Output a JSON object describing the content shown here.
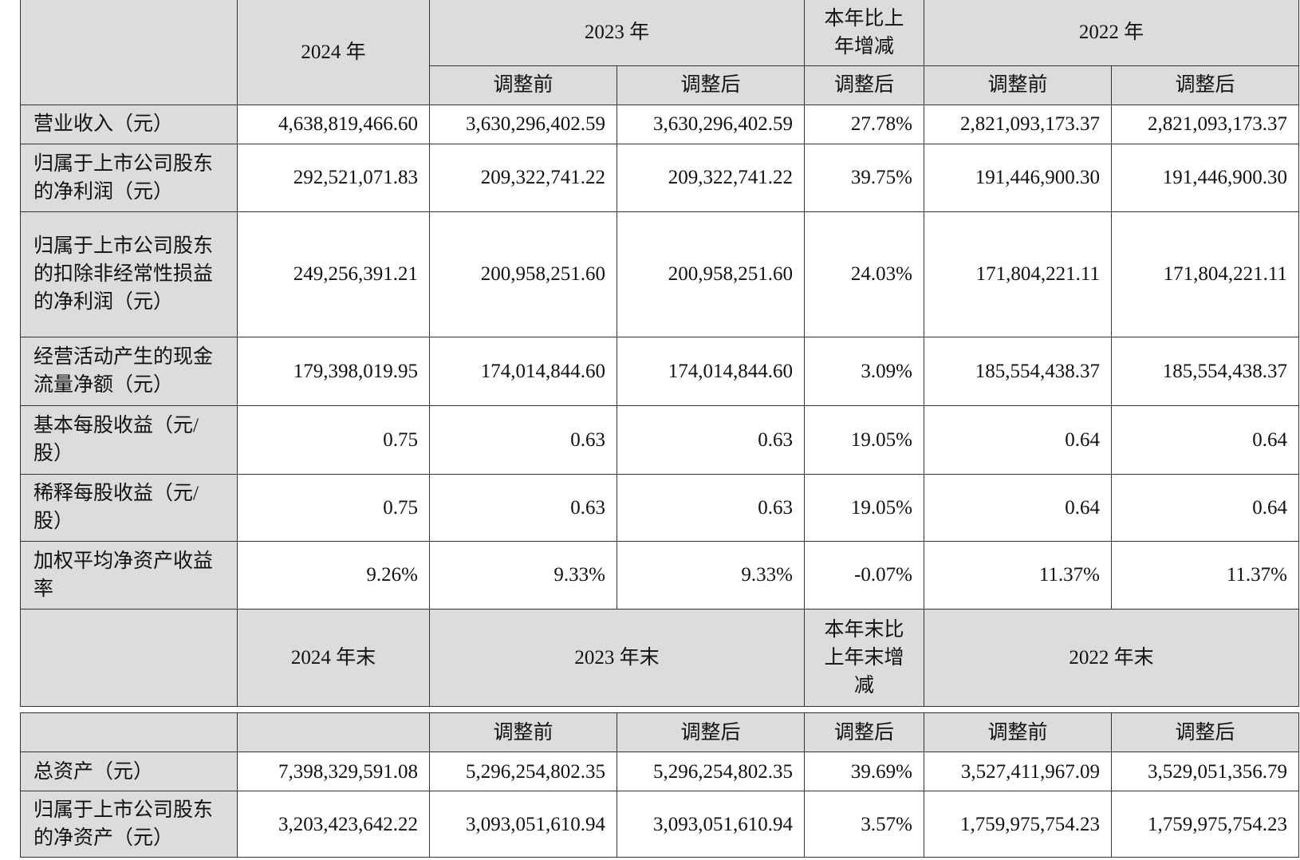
{
  "table1": {
    "header_row1": {
      "c2024": "2024 年",
      "c2023": "2023 年",
      "change": "本年比上年增减",
      "c2022": "2022 年"
    },
    "header_row2": [
      "调整前",
      "调整后",
      "调整后",
      "调整前",
      "调整后"
    ],
    "rows": [
      {
        "label": "营业收入（元）",
        "values": [
          "4,638,819,466.60",
          "3,630,296,402.59",
          "3,630,296,402.59",
          "27.78%",
          "2,821,093,173.37",
          "2,821,093,173.37"
        ]
      },
      {
        "label": "归属于上市公司股东的净利润（元）",
        "values": [
          "292,521,071.83",
          "209,322,741.22",
          "209,322,741.22",
          "39.75%",
          "191,446,900.30",
          "191,446,900.30"
        ]
      },
      {
        "label": "归属于上市公司股东的扣除非经常性损益的净利润（元）",
        "values": [
          "249,256,391.21",
          "200,958,251.60",
          "200,958,251.60",
          "24.03%",
          "171,804,221.11",
          "171,804,221.11"
        ]
      },
      {
        "label": "经营活动产生的现金流量净额（元）",
        "values": [
          "179,398,019.95",
          "174,014,844.60",
          "174,014,844.60",
          "3.09%",
          "185,554,438.37",
          "185,554,438.37"
        ]
      },
      {
        "label": "基本每股收益（元/股）",
        "values": [
          "0.75",
          "0.63",
          "0.63",
          "19.05%",
          "0.64",
          "0.64"
        ]
      },
      {
        "label": "稀释每股收益（元/股）",
        "values": [
          "0.75",
          "0.63",
          "0.63",
          "19.05%",
          "0.64",
          "0.64"
        ]
      },
      {
        "label": "加权平均净资产收益率",
        "values": [
          "9.26%",
          "9.33%",
          "9.33%",
          "-0.07%",
          "11.37%",
          "11.37%"
        ]
      }
    ],
    "header_end": {
      "c2024": "2024 年末",
      "c2023": "2023 年末",
      "change": "本年末比上年末增减",
      "c2022": "2022 年末"
    }
  },
  "table2": {
    "header_row": [
      "调整前",
      "调整后",
      "调整后",
      "调整前",
      "调整后"
    ],
    "rows": [
      {
        "label": "总资产（元）",
        "values": [
          "7,398,329,591.08",
          "5,296,254,802.35",
          "5,296,254,802.35",
          "39.69%",
          "3,527,411,967.09",
          "3,529,051,356.79"
        ]
      },
      {
        "label": "归属于上市公司股东的净资产（元）",
        "values": [
          "3,203,423,642.22",
          "3,093,051,610.94",
          "3,093,051,610.94",
          "3.57%",
          "1,759,975,754.23",
          "1,759,975,754.23"
        ]
      }
    ]
  }
}
